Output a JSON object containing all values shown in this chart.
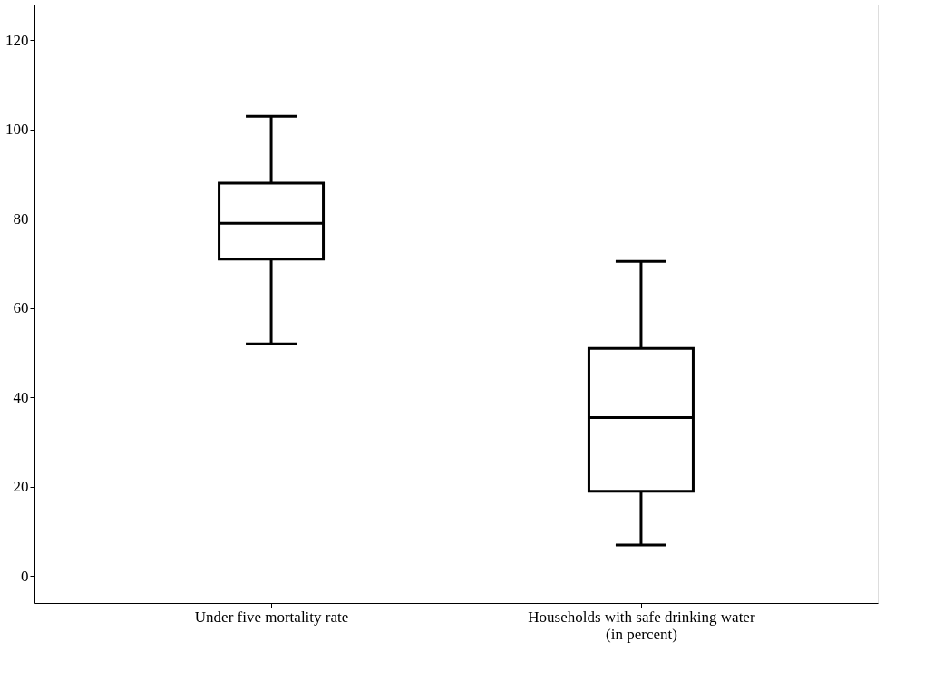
{
  "chart_data": {
    "type": "box",
    "categories": [
      "Under five mortality rate",
      "Households with safe drinking water (in percent)"
    ],
    "boxes": [
      {
        "low": 52,
        "q1": 71,
        "median": 79,
        "q3": 88,
        "high": 103
      },
      {
        "low": 7,
        "q1": 19,
        "median": 35.5,
        "q3": 51,
        "high": 70.5
      }
    ],
    "color": "#000000",
    "ylim": [
      -6,
      128
    ],
    "yticks": [
      0,
      20,
      40,
      60,
      80,
      100,
      120
    ],
    "grid": false
  }
}
